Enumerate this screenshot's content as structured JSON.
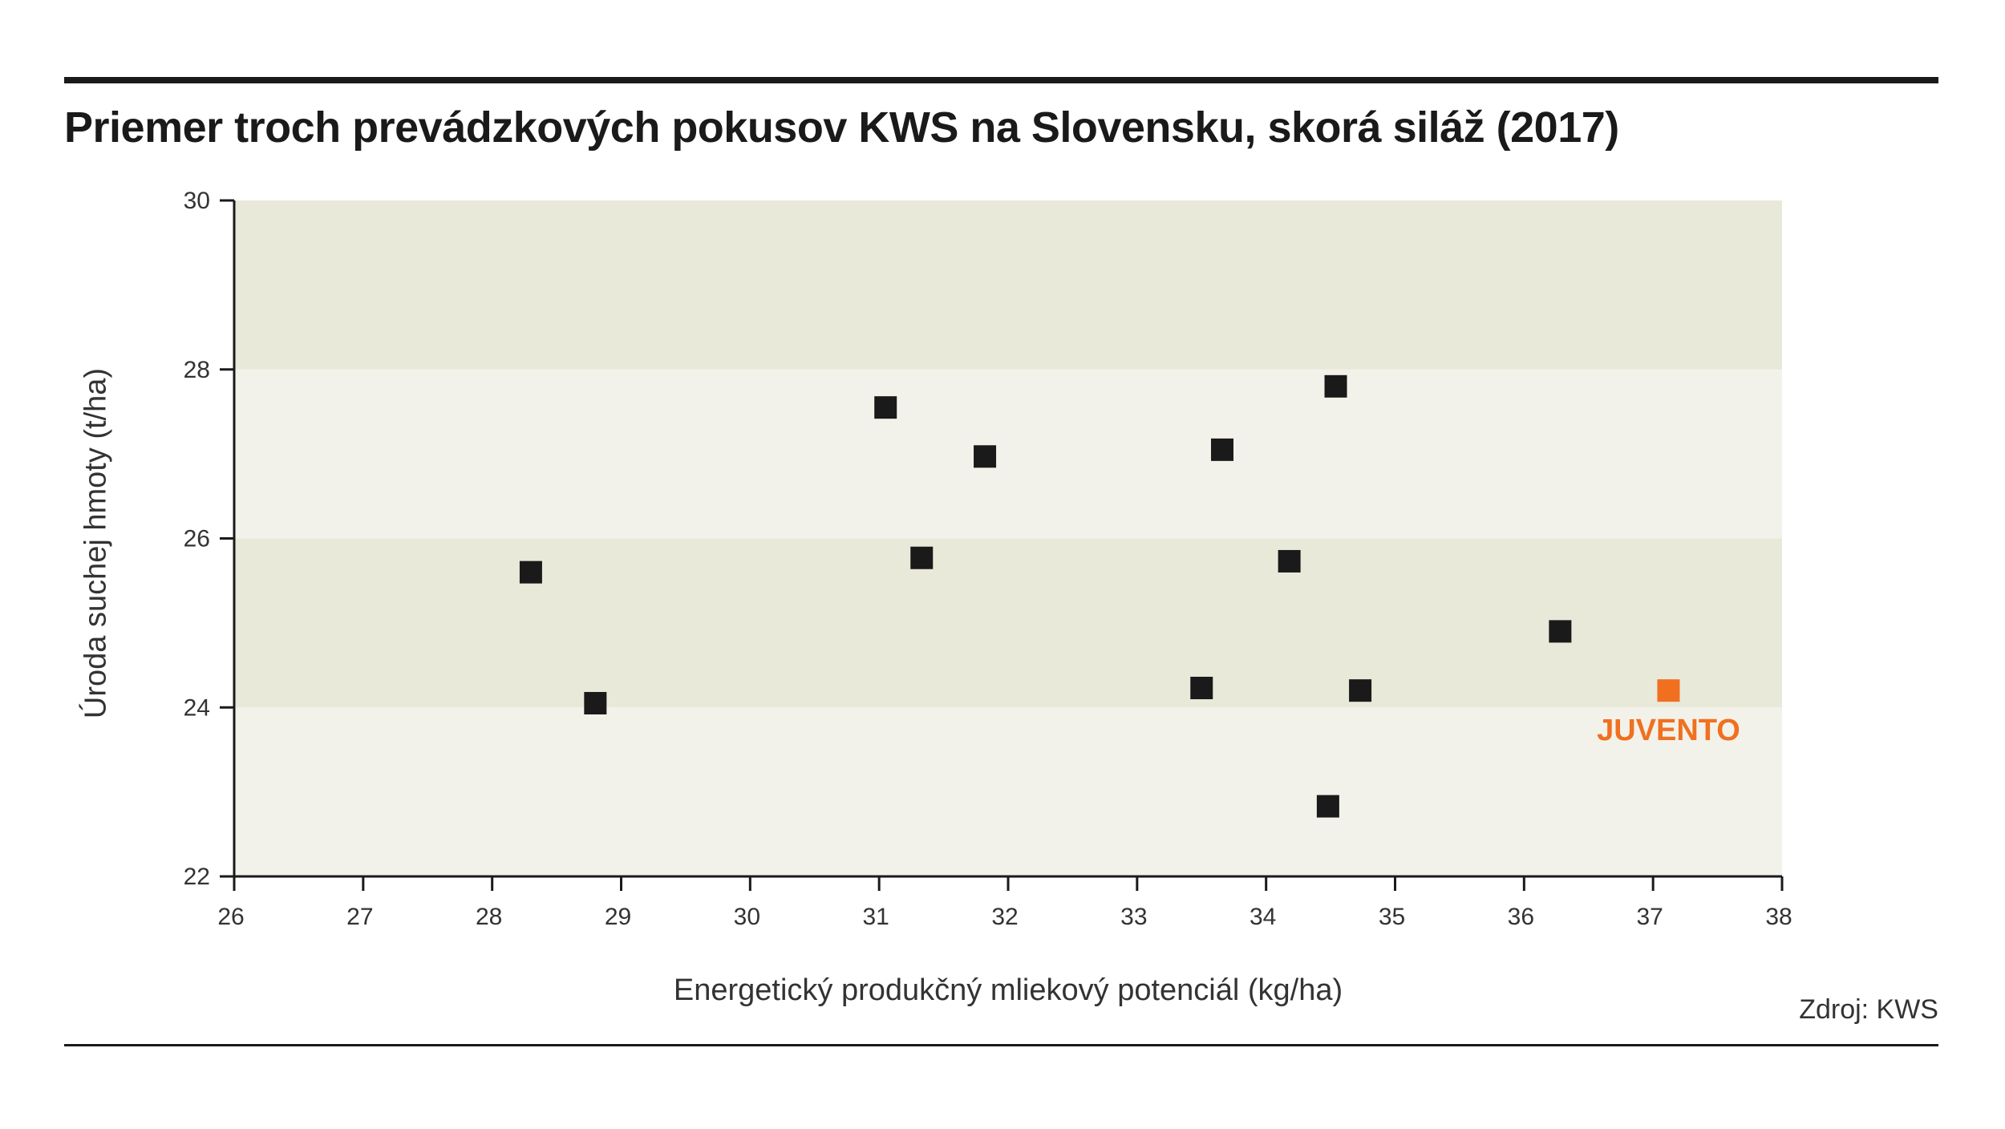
{
  "title": "Priemer troch prevádzkových pokusov KWS na Slovensku, skorá siláž (2017)",
  "source": "Zdroj: KWS",
  "colors": {
    "band_dark": "#e9e9da",
    "band_light": "#f3f2ea",
    "point": "#1a1a1a",
    "highlight": "#f07020",
    "axis": "#1a1a1a"
  },
  "chart_data": {
    "type": "scatter",
    "title": "Priemer troch prevádzkových pokusov KWS na Slovensku, skorá siláž (2017)",
    "xlabel": "Energetický produkčný mliekový potenciál (kg/ha)",
    "ylabel": "Úroda suchej hmoty (t/ha)",
    "xlim": [
      26,
      38
    ],
    "ylim": [
      22,
      30
    ],
    "xticks": [
      26,
      27,
      28,
      29,
      30,
      31,
      32,
      33,
      34,
      35,
      36,
      37,
      38
    ],
    "yticks": [
      22,
      24,
      26,
      28,
      30
    ],
    "grid": false,
    "background_bands": [
      {
        "from": 22,
        "to": 24,
        "tone": "light"
      },
      {
        "from": 24,
        "to": 26,
        "tone": "dark"
      },
      {
        "from": 26,
        "to": 28,
        "tone": "light"
      },
      {
        "from": 28,
        "to": 30,
        "tone": "dark"
      }
    ],
    "points": [
      {
        "x": 28.3,
        "y": 25.6
      },
      {
        "x": 28.8,
        "y": 24.05
      },
      {
        "x": 31.05,
        "y": 27.55
      },
      {
        "x": 31.33,
        "y": 25.77
      },
      {
        "x": 31.82,
        "y": 26.97
      },
      {
        "x": 33.5,
        "y": 24.23
      },
      {
        "x": 33.66,
        "y": 27.05
      },
      {
        "x": 34.18,
        "y": 25.73
      },
      {
        "x": 34.48,
        "y": 22.83
      },
      {
        "x": 34.54,
        "y": 27.8
      },
      {
        "x": 34.73,
        "y": 24.2
      },
      {
        "x": 36.28,
        "y": 24.9
      }
    ],
    "highlight": {
      "x": 37.12,
      "y": 24.2,
      "label": "JUVENTO"
    }
  }
}
